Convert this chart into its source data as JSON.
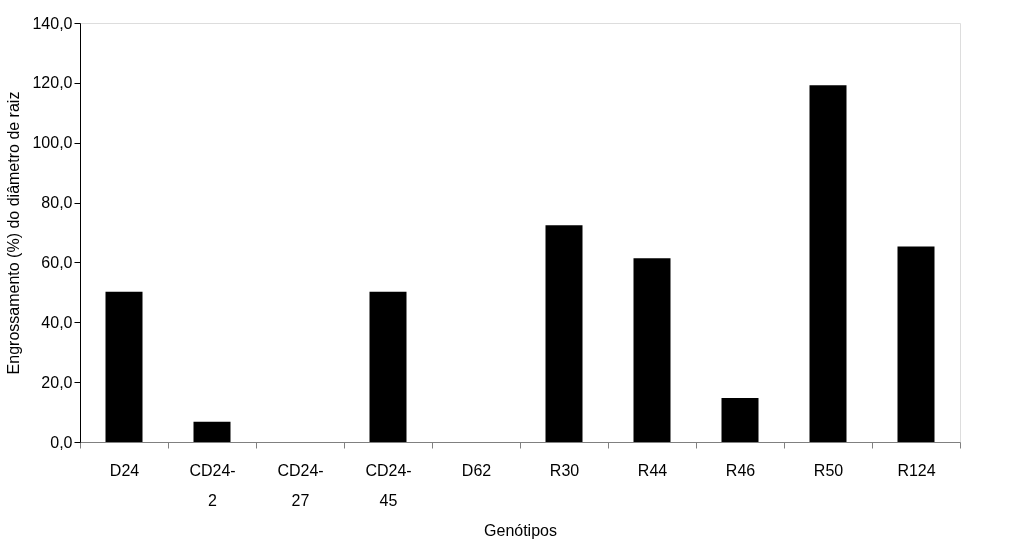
{
  "chart_data": {
    "type": "bar",
    "xlabel": "Genótipos",
    "ylabel": "Engrossamento (%) do diâmetro de raiz",
    "categories": [
      "D24",
      "CD24-2",
      "CD24-27",
      "CD24-45",
      "D62",
      "R30",
      "R44",
      "R46",
      "R50",
      "R124"
    ],
    "values": [
      50.2,
      6.8,
      0,
      50.2,
      0,
      72.4,
      61.4,
      14.7,
      119.2,
      65.3
    ],
    "color": "#000000",
    "ylim": [
      0,
      140
    ],
    "yticks": [
      {
        "value": 0,
        "label": "0,0"
      },
      {
        "value": 20,
        "label": "20,0"
      },
      {
        "value": 40,
        "label": "40,0"
      },
      {
        "value": 60,
        "label": "60,0"
      },
      {
        "value": 80,
        "label": "80,0"
      },
      {
        "value": 100,
        "label": "100,0"
      },
      {
        "value": 120,
        "label": "120,0"
      },
      {
        "value": 140,
        "label": "140,0"
      }
    ],
    "grid": false
  }
}
